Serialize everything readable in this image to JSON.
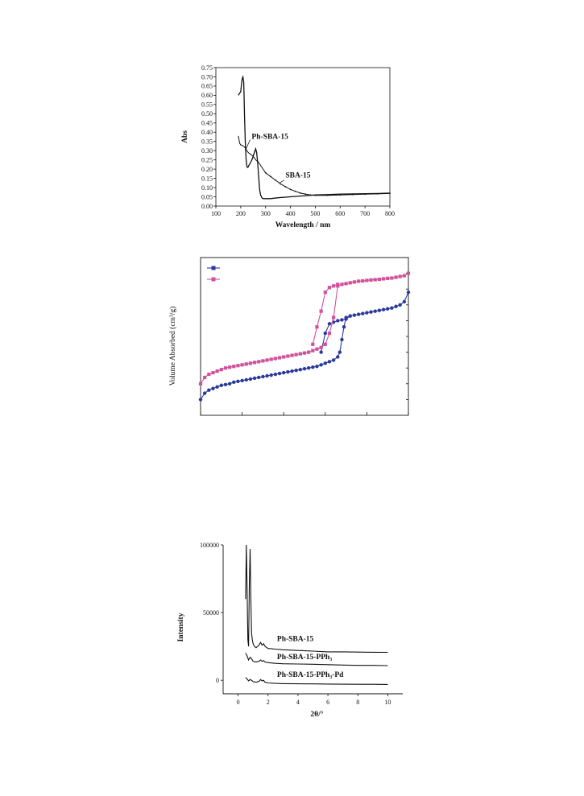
{
  "chart_data": [
    {
      "type": "line",
      "ylabel": "Abs",
      "xlabel": "Wavelength / nm",
      "xlim": [
        100,
        800
      ],
      "ylim": [
        0,
        0.75
      ],
      "xticks": [
        "100",
        "200",
        "300",
        "400",
        "500",
        "600",
        "700",
        "800"
      ],
      "yticks": [
        "0.00",
        "0.05",
        "0.10",
        "0.15",
        "0.20",
        "0.25",
        "0.30",
        "0.35",
        "0.40",
        "0.45",
        "0.50",
        "0.55",
        "0.60",
        "0.65",
        "0.70",
        "0.75"
      ],
      "grid": false,
      "series": [
        {
          "name": "Ph-SBA-15",
          "x": [
            190,
            195,
            200,
            203,
            206,
            209,
            212,
            215,
            218,
            220,
            222,
            224,
            226,
            229,
            233,
            237,
            241,
            245,
            250,
            255,
            260,
            264,
            268,
            272,
            276,
            280,
            285,
            290,
            300,
            320,
            350,
            400,
            450,
            500,
            550,
            600,
            650,
            700,
            750,
            800
          ],
          "y": [
            0.6,
            0.61,
            0.62,
            0.66,
            0.69,
            0.7,
            0.67,
            0.5,
            0.36,
            0.3,
            0.25,
            0.22,
            0.21,
            0.21,
            0.22,
            0.23,
            0.24,
            0.25,
            0.27,
            0.29,
            0.31,
            0.29,
            0.24,
            0.16,
            0.09,
            0.06,
            0.045,
            0.04,
            0.04,
            0.04,
            0.045,
            0.05,
            0.055,
            0.06,
            0.062,
            0.065,
            0.066,
            0.067,
            0.068,
            0.07
          ]
        },
        {
          "name": "SBA-15",
          "x": [
            190,
            193,
            196,
            200,
            205,
            210,
            215,
            220,
            225,
            230,
            240,
            250,
            260,
            270,
            280,
            290,
            300,
            320,
            340,
            360,
            380,
            400,
            420,
            440,
            460,
            480,
            500,
            550,
            600,
            650,
            700,
            750,
            800
          ],
          "y": [
            0.38,
            0.36,
            0.34,
            0.33,
            0.33,
            0.325,
            0.32,
            0.31,
            0.3,
            0.29,
            0.28,
            0.27,
            0.25,
            0.24,
            0.22,
            0.2,
            0.18,
            0.16,
            0.14,
            0.12,
            0.105,
            0.09,
            0.08,
            0.07,
            0.065,
            0.06,
            0.058,
            0.058,
            0.06,
            0.062,
            0.064,
            0.066,
            0.068
          ]
        }
      ],
      "annotations": [
        "Ph-SBA-15",
        "SBA-15"
      ]
    },
    {
      "type": "line",
      "ylabel": "Volume Absorbed (cm³/g)",
      "xlim": [
        0,
        1
      ],
      "ylim": [
        0,
        1
      ],
      "legend": {
        "placement": "top-left",
        "labels": [
          "",
          ""
        ]
      },
      "series": [
        {
          "color": "#2b3a9a",
          "marker": "circle",
          "x": [
            0.0,
            0.02,
            0.04,
            0.06,
            0.08,
            0.1,
            0.12,
            0.14,
            0.16,
            0.18,
            0.2,
            0.22,
            0.24,
            0.26,
            0.28,
            0.3,
            0.32,
            0.34,
            0.36,
            0.38,
            0.4,
            0.42,
            0.44,
            0.46,
            0.48,
            0.5,
            0.52,
            0.54,
            0.56,
            0.58,
            0.6,
            0.62,
            0.64,
            0.66,
            0.67,
            0.68,
            0.69,
            0.7,
            0.72,
            0.74,
            0.76,
            0.78,
            0.8,
            0.82,
            0.84,
            0.86,
            0.88,
            0.9,
            0.92,
            0.94,
            0.96,
            0.98,
            1.0
          ],
          "y": [
            0.1,
            0.14,
            0.16,
            0.17,
            0.18,
            0.19,
            0.195,
            0.2,
            0.21,
            0.215,
            0.22,
            0.225,
            0.23,
            0.235,
            0.24,
            0.245,
            0.25,
            0.255,
            0.26,
            0.265,
            0.27,
            0.275,
            0.28,
            0.285,
            0.29,
            0.295,
            0.3,
            0.305,
            0.31,
            0.32,
            0.33,
            0.34,
            0.35,
            0.37,
            0.4,
            0.48,
            0.56,
            0.62,
            0.63,
            0.635,
            0.64,
            0.645,
            0.65,
            0.655,
            0.66,
            0.665,
            0.67,
            0.675,
            0.68,
            0.69,
            0.7,
            0.72,
            0.78
          ]
        },
        {
          "color": "#2b3a9a",
          "marker": "circle",
          "x": [
            0.58,
            0.6,
            0.62,
            0.64,
            0.66,
            0.68,
            0.7,
            0.72
          ],
          "y": [
            0.4,
            0.52,
            0.58,
            0.59,
            0.6,
            0.605,
            0.61,
            0.63
          ]
        },
        {
          "color": "#d0529c",
          "marker": "square",
          "x": [
            0.0,
            0.02,
            0.04,
            0.06,
            0.08,
            0.1,
            0.12,
            0.14,
            0.16,
            0.18,
            0.2,
            0.22,
            0.24,
            0.26,
            0.28,
            0.3,
            0.32,
            0.34,
            0.36,
            0.38,
            0.4,
            0.42,
            0.44,
            0.46,
            0.48,
            0.5,
            0.52,
            0.54,
            0.56,
            0.58,
            0.6,
            0.62,
            0.64,
            0.66,
            0.68,
            0.7,
            0.72,
            0.74,
            0.76,
            0.78,
            0.8,
            0.82,
            0.84,
            0.86,
            0.88,
            0.9,
            0.92,
            0.94,
            0.96,
            0.98,
            1.0
          ],
          "y": [
            0.2,
            0.24,
            0.26,
            0.27,
            0.28,
            0.29,
            0.3,
            0.305,
            0.31,
            0.315,
            0.32,
            0.325,
            0.33,
            0.335,
            0.34,
            0.345,
            0.35,
            0.355,
            0.36,
            0.365,
            0.37,
            0.375,
            0.38,
            0.385,
            0.39,
            0.395,
            0.4,
            0.41,
            0.42,
            0.43,
            0.45,
            0.52,
            0.62,
            0.82,
            0.83,
            0.835,
            0.84,
            0.845,
            0.85,
            0.852,
            0.855,
            0.858,
            0.86,
            0.862,
            0.865,
            0.868,
            0.87,
            0.875,
            0.88,
            0.885,
            0.9
          ]
        },
        {
          "color": "#d0529c",
          "marker": "square",
          "x": [
            0.54,
            0.56,
            0.58,
            0.6,
            0.62,
            0.64,
            0.66
          ],
          "y": [
            0.45,
            0.56,
            0.66,
            0.78,
            0.81,
            0.82,
            0.83
          ]
        }
      ]
    },
    {
      "type": "line",
      "ylabel": "Intensity",
      "xlabel": "2θ/°",
      "xlim": [
        -1,
        11
      ],
      "ylim": [
        -10000,
        100000
      ],
      "xticks": [
        "0",
        "2",
        "4",
        "6",
        "8",
        "10"
      ],
      "yticks": [
        "0",
        "50000",
        "100000"
      ],
      "series": [
        {
          "name": "Ph-SBA-15",
          "x": [
            0.5,
            0.55,
            0.6,
            0.65,
            0.7,
            0.75,
            0.8,
            0.85,
            0.9,
            0.95,
            1.0,
            1.1,
            1.2,
            1.4,
            1.5,
            1.6,
            1.7,
            1.8,
            2.0,
            2.5,
            3,
            4,
            5,
            6,
            7,
            8,
            9,
            10
          ],
          "y": [
            60000,
            100000,
            70000,
            30000,
            25000,
            70000,
            97000,
            60000,
            35000,
            30000,
            27000,
            25000,
            24000,
            26000,
            28000,
            26000,
            27000,
            25000,
            23500,
            23000,
            22500,
            22000,
            21500,
            21000,
            21000,
            20800,
            20700,
            20600
          ]
        },
        {
          "name": "Ph-SBA-15-PPh₃",
          "x": [
            0.5,
            0.6,
            0.7,
            0.8,
            0.9,
            1.0,
            1.2,
            1.4,
            1.5,
            1.6,
            1.7,
            1.8,
            2.0,
            2.5,
            3,
            4,
            5,
            6,
            7,
            8,
            9,
            10
          ],
          "y": [
            20000,
            18000,
            15000,
            17000,
            16000,
            14000,
            13500,
            14000,
            15000,
            14000,
            14500,
            13500,
            13000,
            12500,
            12200,
            12000,
            11800,
            11500,
            11200,
            11000,
            11000,
            10800
          ]
        },
        {
          "name": "Ph-SBA-15-PPh₃-Pd",
          "x": [
            0.5,
            0.6,
            0.7,
            0.8,
            0.9,
            1.0,
            1.2,
            1.4,
            1.5,
            1.6,
            1.7,
            1.8,
            2.0,
            2.5,
            3,
            4,
            5,
            6,
            7,
            8,
            9,
            10
          ],
          "y": [
            2000,
            1000,
            -500,
            500,
            0,
            -1000,
            -1500,
            -800,
            500,
            -500,
            0,
            -1500,
            -2000,
            -2300,
            -2500,
            -2600,
            -2700,
            -2800,
            -2900,
            -3000,
            -3000,
            -3100
          ]
        }
      ],
      "annotations": [
        "Ph-SBA-15",
        "Ph-SBA-15-PPh₃",
        "Ph-SBA-15-PPh₃-Pd"
      ]
    }
  ]
}
